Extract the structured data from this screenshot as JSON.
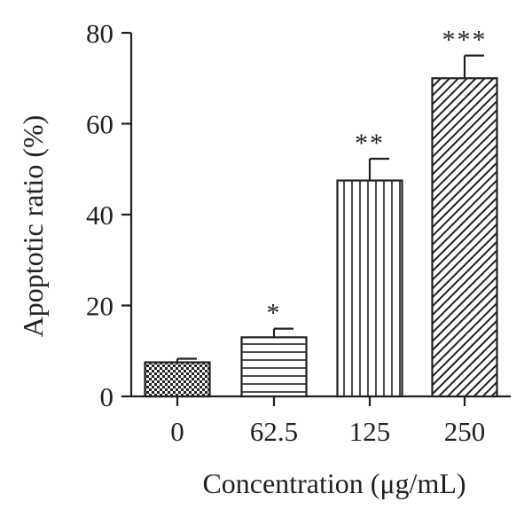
{
  "chart_data": {
    "type": "bar",
    "title": "",
    "xlabel": "Concentration (μg/mL)",
    "ylabel": "Apoptotic ratio (%)",
    "categories": [
      "0",
      "62.5",
      "125",
      "250"
    ],
    "series": [
      {
        "values": [
          7.5,
          13,
          47.5,
          70
        ]
      }
    ],
    "error": [
      0.8,
      1.9,
      4.8,
      5.0
    ],
    "significance": [
      "",
      "*",
      "**",
      "***"
    ],
    "patterns": [
      "checkerboard",
      "horizontal-lines",
      "vertical-lines",
      "diagonal-lines"
    ],
    "ylim": [
      0,
      80
    ],
    "yticks": [
      0,
      20,
      40,
      60,
      80
    ],
    "grid": false,
    "colors": {
      "ink": "#231f20",
      "background": "#ffffff"
    }
  }
}
